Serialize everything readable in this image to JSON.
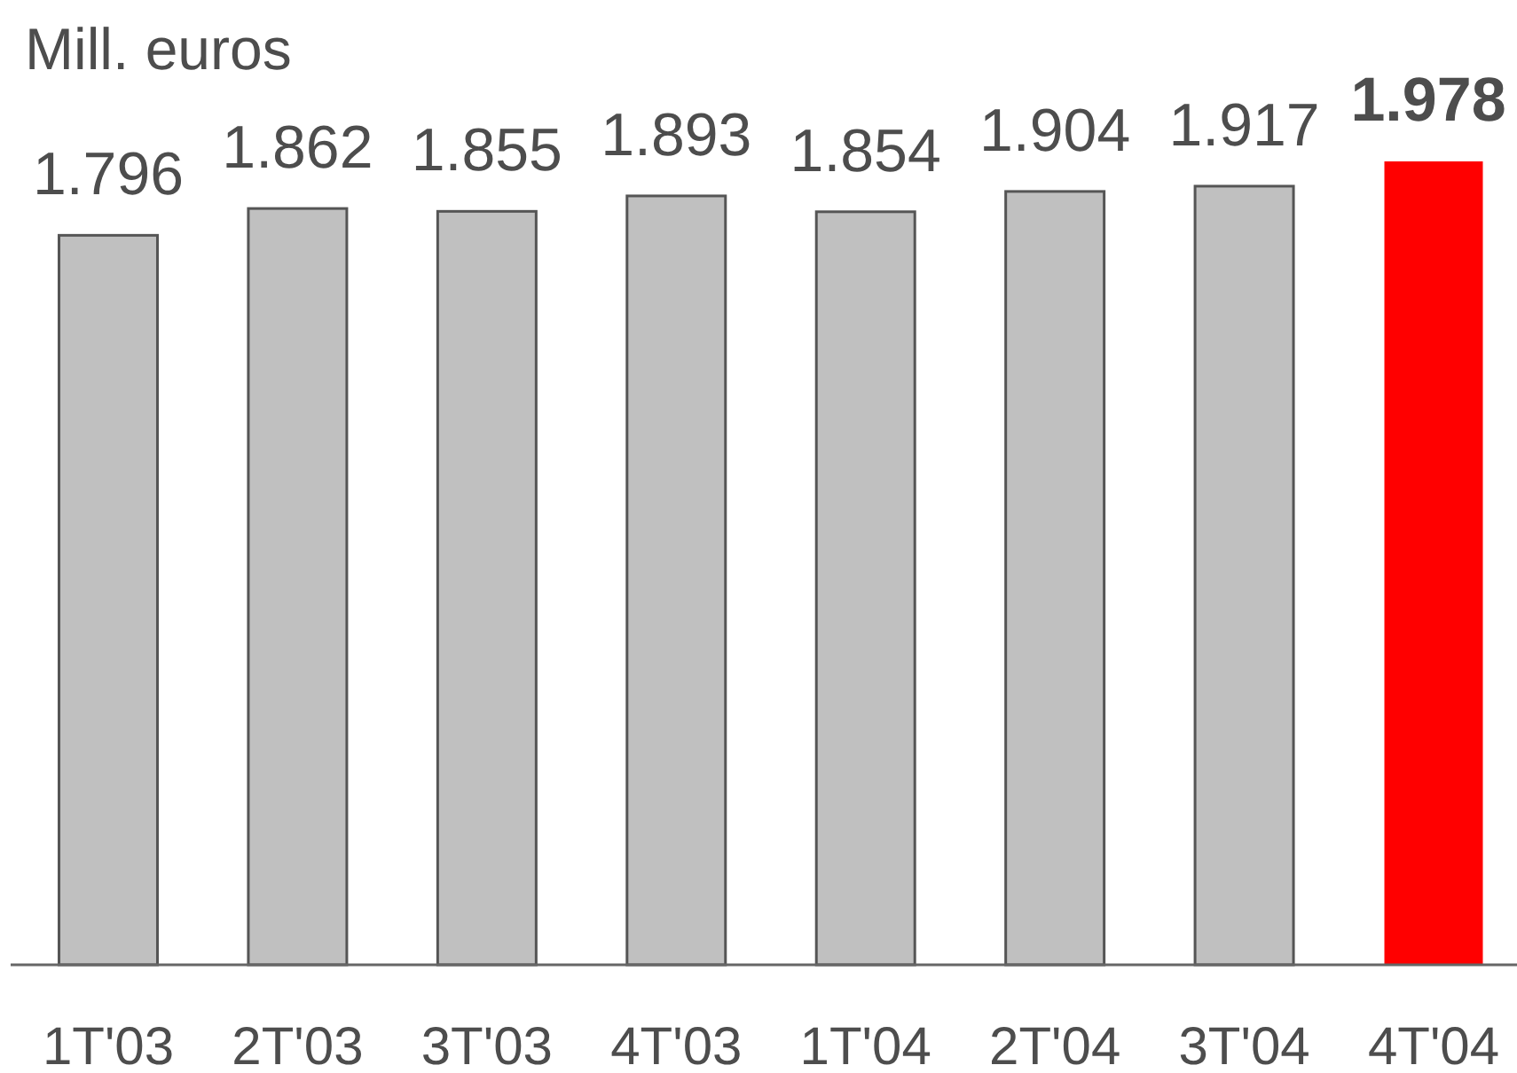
{
  "chart_data": {
    "type": "bar",
    "title": "Mill. euros",
    "categories": [
      "1T'03",
      "2T'03",
      "3T'03",
      "4T'03",
      "1T'04",
      "2T'04",
      "3T'04",
      "4T'04"
    ],
    "values": [
      1796,
      1862,
      1855,
      1893,
      1854,
      1904,
      1917,
      1978
    ],
    "colors": [
      "#c0c0c0",
      "#c0c0c0",
      "#c0c0c0",
      "#c0c0c0",
      "#c0c0c0",
      "#c0c0c0",
      "#c0c0c0",
      "#ff0000"
    ],
    "value_labels": [
      "1.796",
      "1.862",
      "1.855",
      "1.893",
      "1.854",
      "1.904",
      "1.917",
      "1.978"
    ]
  }
}
